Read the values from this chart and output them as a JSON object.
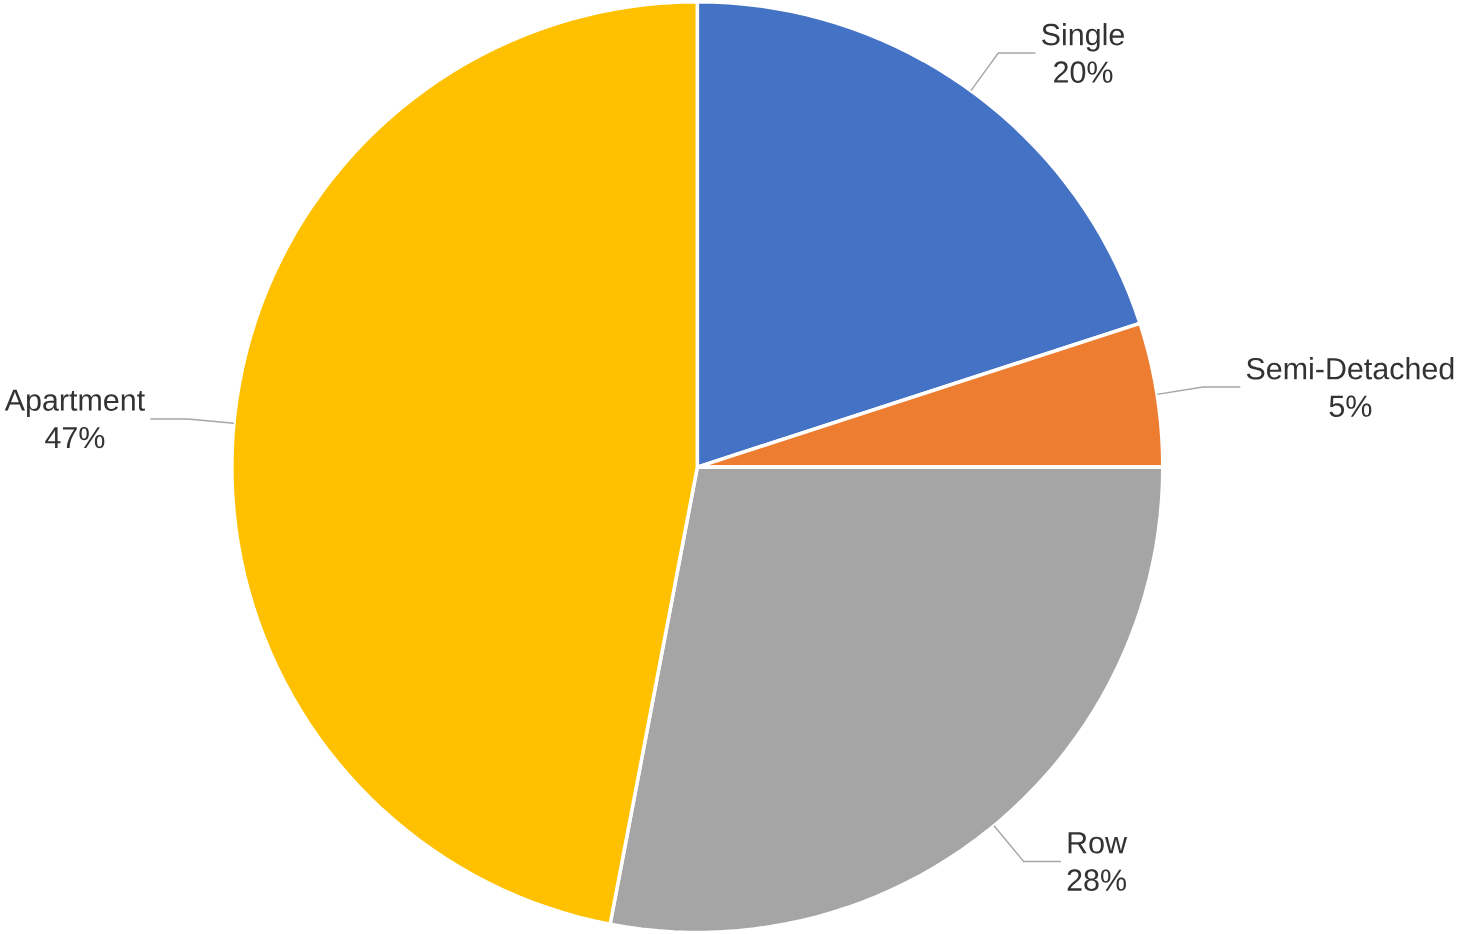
{
  "chart_data": {
    "type": "pie",
    "categories": [
      "Single",
      "Semi-Detached",
      "Row",
      "Apartment"
    ],
    "values": [
      20,
      5,
      28,
      47
    ],
    "value_labels": [
      "20%",
      "5%",
      "28%",
      "47%"
    ],
    "colors": [
      "#4472c4",
      "#ed7d31",
      "#a5a5a5",
      "#ffc000"
    ]
  }
}
